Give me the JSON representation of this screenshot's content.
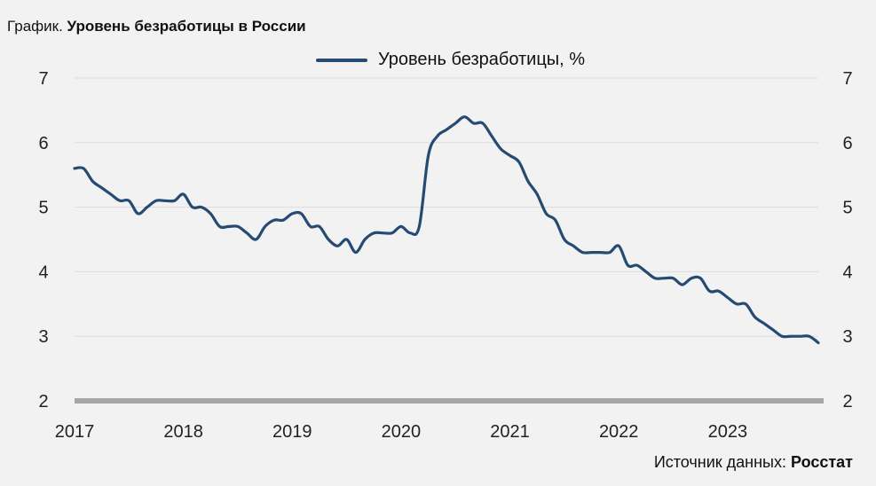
{
  "header": {
    "title_lead": "График.",
    "title_bold": "Уровень безработицы в России"
  },
  "source": {
    "label": "Источник данных:",
    "name": "Росстат"
  },
  "colors": {
    "line": "#264b73",
    "axis_base": "#a6a6a6",
    "grid": "#dcdcdc",
    "background": "#f2f2f2"
  },
  "chart_data": {
    "type": "line",
    "title": "Уровень безработицы в России",
    "xlabel": "",
    "ylabel": "",
    "ylim": [
      2,
      7
    ],
    "xlim": [
      2017.0,
      2023.833
    ],
    "y_ticks": [
      "2",
      "3",
      "4",
      "5",
      "6",
      "7"
    ],
    "x_tick_labels": [
      "2017",
      "2018",
      "2019",
      "2020",
      "2021",
      "2022",
      "2023"
    ],
    "secondary_y_axis": true,
    "legend_position": "top-center",
    "grid": true,
    "series": [
      {
        "name": "Уровень безработицы, %",
        "x": [
          2017.0,
          2017.083,
          2017.167,
          2017.25,
          2017.333,
          2017.417,
          2017.5,
          2017.583,
          2017.667,
          2017.75,
          2017.833,
          2017.917,
          2018.0,
          2018.083,
          2018.167,
          2018.25,
          2018.333,
          2018.417,
          2018.5,
          2018.583,
          2018.667,
          2018.75,
          2018.833,
          2018.917,
          2019.0,
          2019.083,
          2019.167,
          2019.25,
          2019.333,
          2019.417,
          2019.5,
          2019.583,
          2019.667,
          2019.75,
          2019.833,
          2019.917,
          2020.0,
          2020.083,
          2020.167,
          2020.25,
          2020.333,
          2020.417,
          2020.5,
          2020.583,
          2020.667,
          2020.75,
          2020.833,
          2020.917,
          2021.0,
          2021.083,
          2021.167,
          2021.25,
          2021.333,
          2021.417,
          2021.5,
          2021.583,
          2021.667,
          2021.75,
          2021.833,
          2021.917,
          2022.0,
          2022.083,
          2022.167,
          2022.25,
          2022.333,
          2022.417,
          2022.5,
          2022.583,
          2022.667,
          2022.75,
          2022.833,
          2022.917,
          2023.0,
          2023.083,
          2023.167,
          2023.25,
          2023.333,
          2023.417,
          2023.5,
          2023.583,
          2023.667,
          2023.75,
          2023.833
        ],
        "values": [
          5.6,
          5.6,
          5.4,
          5.3,
          5.2,
          5.1,
          5.1,
          4.9,
          5.0,
          5.1,
          5.1,
          5.1,
          5.2,
          5.0,
          5.0,
          4.9,
          4.7,
          4.7,
          4.7,
          4.6,
          4.5,
          4.7,
          4.8,
          4.8,
          4.9,
          4.9,
          4.7,
          4.7,
          4.5,
          4.4,
          4.5,
          4.3,
          4.5,
          4.6,
          4.6,
          4.6,
          4.7,
          4.6,
          4.7,
          5.8,
          6.1,
          6.2,
          6.3,
          6.4,
          6.3,
          6.3,
          6.1,
          5.9,
          5.8,
          5.7,
          5.4,
          5.2,
          4.9,
          4.8,
          4.5,
          4.4,
          4.3,
          4.3,
          4.3,
          4.3,
          4.4,
          4.1,
          4.1,
          4.0,
          3.9,
          3.9,
          3.9,
          3.8,
          3.9,
          3.9,
          3.7,
          3.7,
          3.6,
          3.5,
          3.5,
          3.3,
          3.2,
          3.1,
          3.0,
          3.0,
          3.0,
          3.0,
          2.9
        ]
      }
    ]
  }
}
